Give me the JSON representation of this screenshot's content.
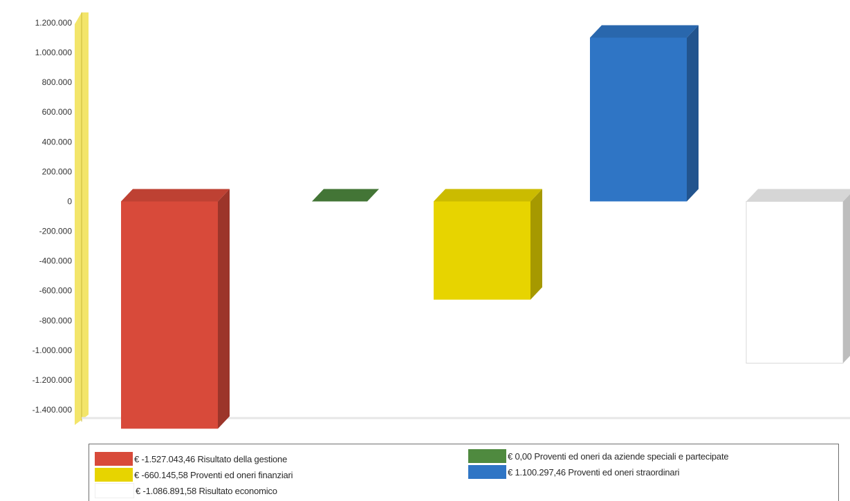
{
  "chart_data": {
    "type": "bar",
    "categories": [
      "Risultato della gestione",
      "Proventi ed oneri da aziende speciali e partecipate",
      "Proventi ed oneri finanziari",
      "Proventi ed oneri straordinari",
      "Risultato economico"
    ],
    "values": [
      -1527043.46,
      0.0,
      -660145.58,
      1100297.46,
      -1086891.58
    ],
    "colors": [
      "#d84a3a",
      "#4f8a3f",
      "#e7d400",
      "#2f75c5",
      "#ffffff"
    ],
    "ylim": [
      -1400000,
      1200000
    ],
    "y_ticks": [
      {
        "v": 1200000,
        "label": "1.200.000"
      },
      {
        "v": 1000000,
        "label": "1.000.000"
      },
      {
        "v": 800000,
        "label": "800.000"
      },
      {
        "v": 600000,
        "label": "600.000"
      },
      {
        "v": 400000,
        "label": "400.000"
      },
      {
        "v": 200000,
        "label": "200.000"
      },
      {
        "v": 0,
        "label": "0"
      },
      {
        "v": -200000,
        "label": "-200.000"
      },
      {
        "v": -400000,
        "label": "-400.000"
      },
      {
        "v": -600000,
        "label": "-600.000"
      },
      {
        "v": -800000,
        "label": "-800.000"
      },
      {
        "v": -1000000,
        "label": "-1.000.000"
      },
      {
        "v": -1200000,
        "label": "-1.200.000"
      },
      {
        "v": -1400000,
        "label": "-1.400.000"
      }
    ],
    "grid": false,
    "legend_position": "bottom",
    "legend": [
      {
        "label": "€ -1.527.043,46 Risultato della gestione",
        "color": "#d84a3a"
      },
      {
        "label": "€ -660.145,58 Proventi ed oneri finanziari",
        "color": "#e7d400"
      },
      {
        "label": "€ -1.086.891,58 Risultato economico",
        "color": "#ffffff"
      },
      {
        "label": "€ 0,00 Proventi ed oneri da aziende speciali e partecipate",
        "color": "#4f8a3f"
      },
      {
        "label": "€ 1.100.297,46 Proventi ed oneri straordinari",
        "color": "#2f75c5"
      }
    ]
  }
}
